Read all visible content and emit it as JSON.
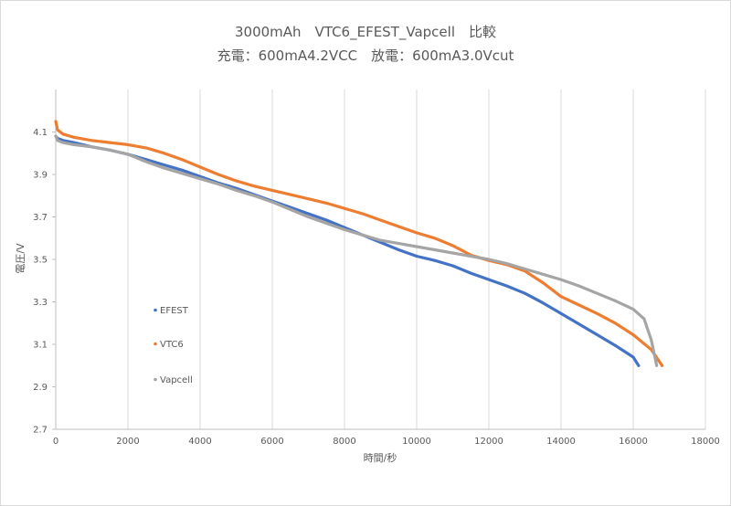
{
  "chart_data": {
    "type": "scatter",
    "title": "3000mAh　VTC6_EFEST_Vapcell　比較",
    "subtitle": "充電：600mA4.2VCC　放電：600mA3.0Vcut",
    "xlabel": "時間/秒",
    "ylabel": "電圧/V",
    "xlim": [
      0,
      18000
    ],
    "ylim": [
      2.7,
      4.3
    ],
    "xticks": [
      0,
      2000,
      4000,
      6000,
      8000,
      10000,
      12000,
      14000,
      16000,
      18000
    ],
    "yticks": [
      2.7,
      2.9,
      3.1,
      3.3,
      3.5,
      3.7,
      3.9,
      4.1
    ],
    "grid": "vertical",
    "legend": "inside-left",
    "series": [
      {
        "name": "EFEST",
        "color": "#4472C4",
        "x": [
          0,
          50,
          200,
          500,
          1000,
          1500,
          2000,
          2500,
          3000,
          3500,
          4000,
          4500,
          5000,
          5500,
          6000,
          6500,
          7000,
          7500,
          8000,
          8500,
          9000,
          9500,
          10000,
          10500,
          11000,
          11500,
          12000,
          12500,
          13000,
          13500,
          14000,
          14500,
          15000,
          15500,
          16000,
          16150
        ],
        "y": [
          4.08,
          4.07,
          4.06,
          4.05,
          4.03,
          4.015,
          3.995,
          3.97,
          3.945,
          3.92,
          3.89,
          3.86,
          3.835,
          3.805,
          3.775,
          3.745,
          3.715,
          3.685,
          3.65,
          3.615,
          3.58,
          3.545,
          3.515,
          3.495,
          3.47,
          3.435,
          3.405,
          3.375,
          3.34,
          3.295,
          3.245,
          3.195,
          3.145,
          3.095,
          3.04,
          3.0
        ]
      },
      {
        "name": "VTC6",
        "color": "#ED7D31",
        "x": [
          0,
          50,
          200,
          500,
          1000,
          1500,
          2000,
          2500,
          3000,
          3500,
          4000,
          4500,
          5000,
          5500,
          6000,
          6500,
          7000,
          7500,
          8000,
          8500,
          9000,
          9500,
          10000,
          10500,
          11000,
          11500,
          12000,
          12500,
          13000,
          13500,
          14000,
          14500,
          15000,
          15500,
          16000,
          16500,
          16800
        ],
        "y": [
          4.15,
          4.11,
          4.09,
          4.075,
          4.06,
          4.05,
          4.04,
          4.025,
          4.0,
          3.97,
          3.935,
          3.9,
          3.87,
          3.845,
          3.825,
          3.805,
          3.785,
          3.765,
          3.74,
          3.715,
          3.685,
          3.655,
          3.625,
          3.6,
          3.565,
          3.52,
          3.495,
          3.475,
          3.445,
          3.39,
          3.325,
          3.285,
          3.245,
          3.2,
          3.145,
          3.075,
          3.0
        ]
      },
      {
        "name": "Vapcell",
        "color": "#A5A5A5",
        "x": [
          0,
          50,
          200,
          500,
          1000,
          1500,
          2000,
          2500,
          3000,
          3500,
          4000,
          4500,
          5000,
          5500,
          6000,
          6500,
          7000,
          7500,
          8000,
          8500,
          9000,
          9500,
          10000,
          10500,
          11000,
          11500,
          12000,
          12500,
          13000,
          13500,
          14000,
          14500,
          15000,
          15500,
          16000,
          16300,
          16500,
          16650
        ],
        "y": [
          4.08,
          4.06,
          4.05,
          4.04,
          4.03,
          4.015,
          3.995,
          3.96,
          3.93,
          3.905,
          3.88,
          3.855,
          3.825,
          3.8,
          3.77,
          3.735,
          3.7,
          3.67,
          3.64,
          3.615,
          3.59,
          3.575,
          3.56,
          3.545,
          3.53,
          3.515,
          3.5,
          3.48,
          3.455,
          3.43,
          3.405,
          3.375,
          3.34,
          3.305,
          3.265,
          3.22,
          3.12,
          3.0
        ]
      }
    ]
  }
}
